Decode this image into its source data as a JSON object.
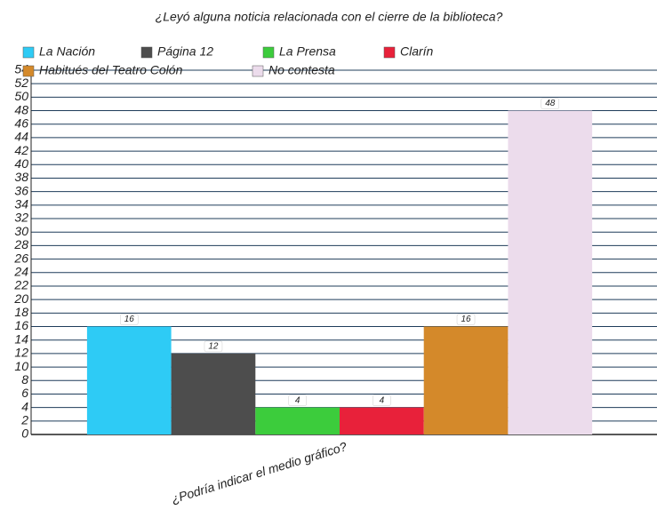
{
  "chart_data": {
    "type": "bar",
    "title": "¿Leyó alguna noticia relacionada con el cierre de la biblioteca?",
    "categories": [
      "¿Podría indicar el medio gráfico?"
    ],
    "series": [
      {
        "name": "La Nación",
        "color": "#2ecbf5",
        "values": [
          16
        ]
      },
      {
        "name": "Página 12",
        "color": "#4d4d4d",
        "values": [
          12
        ]
      },
      {
        "name": "La Prensa",
        "color": "#3ccc3c",
        "values": [
          4
        ]
      },
      {
        "name": "Clarín",
        "color": "#e8213a",
        "values": [
          4
        ]
      },
      {
        "name": "Habitués del Teatro Colón",
        "color": "#d4892a",
        "values": [
          16
        ]
      },
      {
        "name": "No contesta",
        "color": "#ecdcec",
        "values": [
          48
        ]
      }
    ],
    "ylim": [
      0,
      54
    ],
    "yticks": [
      0,
      2,
      4,
      6,
      8,
      10,
      12,
      14,
      16,
      18,
      20,
      22,
      24,
      26,
      28,
      30,
      32,
      34,
      36,
      38,
      40,
      42,
      44,
      46,
      48,
      50,
      52,
      54
    ],
    "grid": true
  }
}
